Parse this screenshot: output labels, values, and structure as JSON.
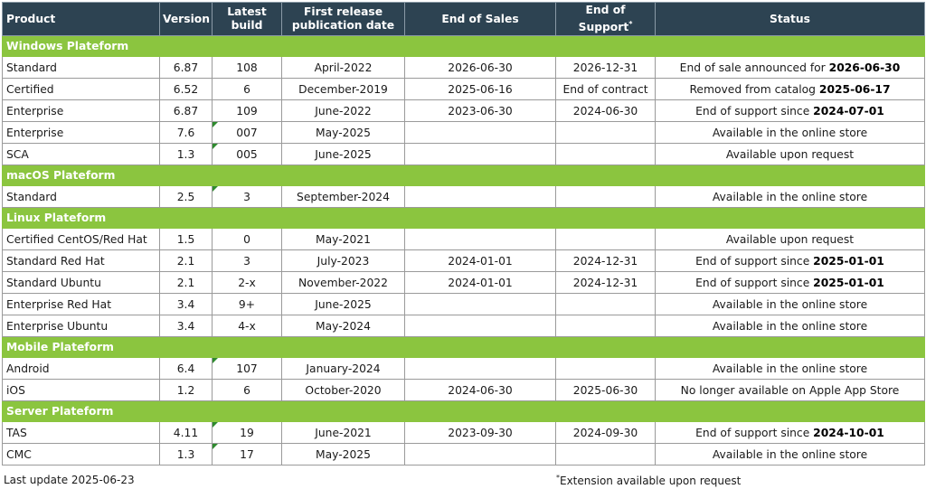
{
  "headers": {
    "product": "Product",
    "version": "Version",
    "latest_build_1": "Latest",
    "latest_build_2": "build",
    "first_release_1": "First release",
    "first_release_2": "publication date",
    "end_of_sales": "End of Sales",
    "end_of_support_1": "End of",
    "end_of_support_2": "Support",
    "end_of_support_mark": "*",
    "status": "Status"
  },
  "flag_color": "#2e8b2e",
  "sections": [
    {
      "title": "Windows Plateform",
      "rows": [
        {
          "product": "Standard",
          "version": "6.87",
          "build": "108",
          "release": "April-2022",
          "eos": "2026-06-30",
          "eosup": "2026-12-31",
          "status_text": "End of sale announced for ",
          "status_bold": "2026-06-30",
          "flag": false
        },
        {
          "product": "Certified",
          "version": "6.52",
          "build": "6",
          "release": "December-2019",
          "eos": "2025-06-16",
          "eosup": "End of contract",
          "status_text": "Removed from catalog ",
          "status_bold": "2025-06-17",
          "flag": false
        },
        {
          "product": "Enterprise",
          "version": "6.87",
          "build": "109",
          "release": "June-2022",
          "eos": "2023-06-30",
          "eosup": "2024-06-30",
          "status_text": "End of support since ",
          "status_bold": "2024-07-01",
          "flag": false
        },
        {
          "product": "Enterprise",
          "version": "7.6",
          "build": "007",
          "release": "May-2025",
          "eos": "",
          "eosup": "",
          "status_text": "Available in the online store",
          "status_bold": "",
          "flag": true
        },
        {
          "product": "SCA",
          "version": "1.3",
          "build": "005",
          "release": "June-2025",
          "eos": "",
          "eosup": "",
          "status_text": "Available upon request",
          "status_bold": "",
          "flag": true
        }
      ]
    },
    {
      "title": "macOS Plateform",
      "rows": [
        {
          "product": "Standard",
          "version": "2.5",
          "build": "3",
          "release": "September-2024",
          "eos": "",
          "eosup": "",
          "status_text": "Available in the online store",
          "status_bold": "",
          "flag": true
        }
      ]
    },
    {
      "title": "Linux Plateform",
      "rows": [
        {
          "product": "Certified CentOS/Red Hat",
          "version": "1.5",
          "build": "0",
          "release": "May-2021",
          "eos": "",
          "eosup": "",
          "status_text": "Available upon request",
          "status_bold": "",
          "flag": false
        },
        {
          "product": "Standard Red Hat",
          "version": "2.1",
          "build": "3",
          "release": "July-2023",
          "eos": "2024-01-01",
          "eosup": "2024-12-31",
          "status_text": "End of support since ",
          "status_bold": "2025-01-01",
          "flag": false
        },
        {
          "product": "Standard Ubuntu",
          "version": "2.1",
          "build": "2-x",
          "release": "November-2022",
          "eos": "2024-01-01",
          "eosup": "2024-12-31",
          "status_text": "End of support since ",
          "status_bold": "2025-01-01",
          "flag": false
        },
        {
          "product": "Enterprise Red Hat",
          "version": "3.4",
          "build": "9+",
          "release": "June-2025",
          "eos": "",
          "eosup": "",
          "status_text": "Available in the online store",
          "status_bold": "",
          "flag": false
        },
        {
          "product": "Enterprise Ubuntu",
          "version": "3.4",
          "build": "4-x",
          "release": "May-2024",
          "eos": "",
          "eosup": "",
          "status_text": "Available in the online store",
          "status_bold": "",
          "flag": false
        }
      ]
    },
    {
      "title": "Mobile Plateform",
      "rows": [
        {
          "product": "Android",
          "version": "6.4",
          "build": "107",
          "release": "January-2024",
          "eos": "",
          "eosup": "",
          "status_text": "Available in the online store",
          "status_bold": "",
          "flag": true
        },
        {
          "product": "iOS",
          "version": "1.2",
          "build": "6",
          "release": "October-2020",
          "eos": "2024-06-30",
          "eosup": "2025-06-30",
          "status_text": "No longer available on Apple App Store",
          "status_bold": "",
          "flag": false
        }
      ]
    },
    {
      "title": "Server Plateform",
      "rows": [
        {
          "product": "TAS",
          "version": "4.11",
          "build": "19",
          "release": "June-2021",
          "eos": "2023-09-30",
          "eosup": "2024-09-30",
          "status_text": "End of support since ",
          "status_bold": "2024-10-01",
          "flag": true
        },
        {
          "product": "CMC",
          "version": "1.3",
          "build": "17",
          "release": "May-2025",
          "eos": "",
          "eosup": "",
          "status_text": "Available in the online store",
          "status_bold": "",
          "flag": true
        }
      ]
    }
  ],
  "footer": {
    "last_update": "Last update 2025-06-23",
    "note_mark": "*",
    "note_text": "Extension available upon request"
  }
}
